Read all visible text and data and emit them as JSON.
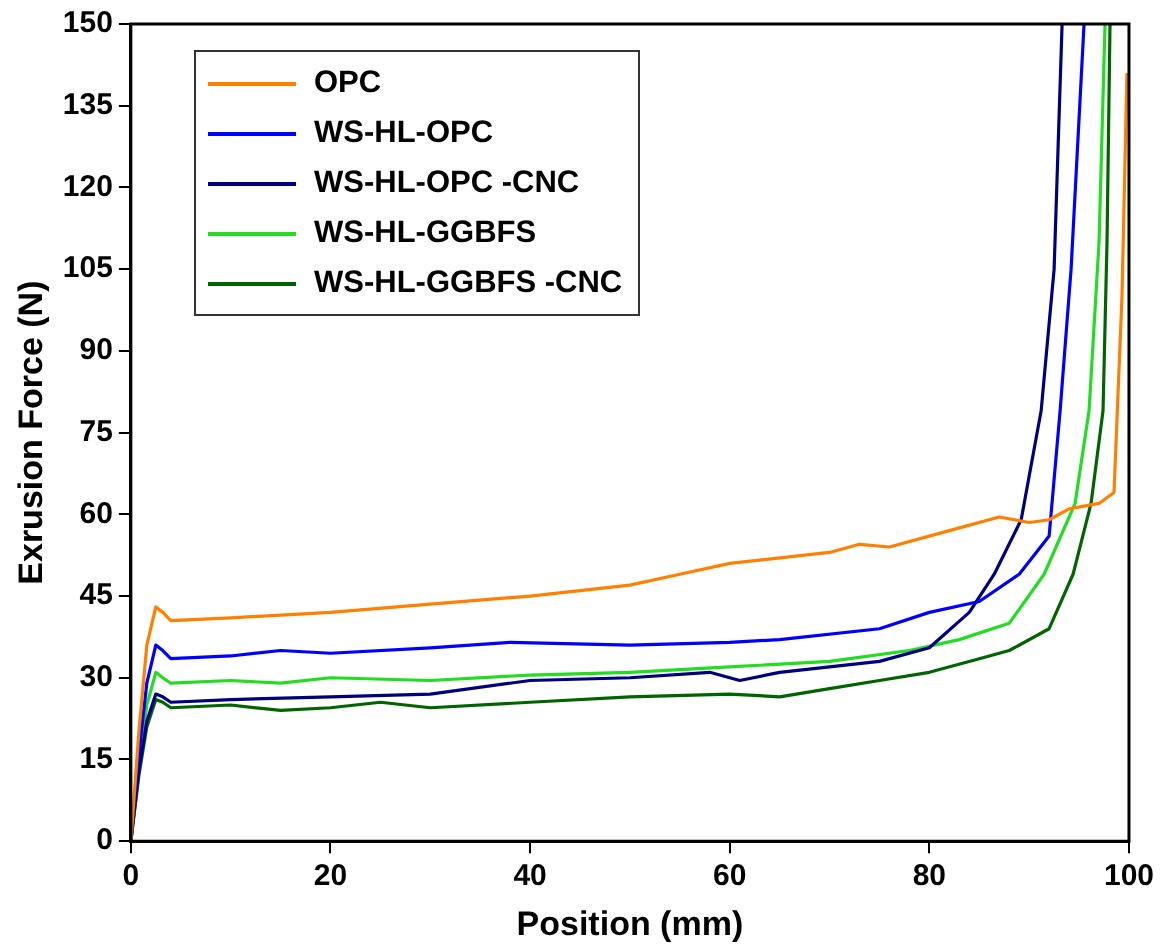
{
  "chart_data": {
    "type": "line",
    "xlabel": "Position (mm)",
    "ylabel": "Exrusion Force (N)",
    "xlim": [
      0,
      100
    ],
    "xticks": [
      0,
      20,
      40,
      60,
      80,
      100
    ],
    "ylim": [
      0,
      150
    ],
    "yticks": [
      0,
      15,
      30,
      45,
      60,
      75,
      90,
      105,
      120,
      135,
      150
    ],
    "grid": false,
    "legend": "top left",
    "marker": "none",
    "line_style": "solid",
    "series": [
      {
        "name": "OPC",
        "color": "#ff8000",
        "x": [
          0,
          0.8,
          1.6,
          2.5,
          3.2,
          4,
          10,
          20,
          30,
          40,
          50,
          55,
          60,
          70,
          73,
          76,
          82,
          87,
          90,
          92,
          94,
          97,
          98.5,
          99.3,
          99.8
        ],
        "values": [
          0,
          20,
          36,
          43,
          42,
          40.5,
          41,
          42,
          43.5,
          45,
          47,
          49,
          51,
          53,
          54.5,
          54,
          57,
          59.5,
          58.5,
          59,
          61,
          62,
          64,
          100,
          141
        ]
      },
      {
        "name": "WS-HL-OPC",
        "color": "#0000ff",
        "x": [
          0,
          0.8,
          1.6,
          2.5,
          3.2,
          4,
          10,
          15,
          20,
          30,
          38,
          50,
          60,
          65,
          75,
          80,
          85,
          89,
          92,
          93.1,
          94.2,
          95.5
        ],
        "values": [
          0,
          16,
          29,
          36,
          35,
          33.5,
          34,
          35,
          34.5,
          35.5,
          36.5,
          36,
          36.5,
          37,
          39,
          42,
          44,
          49,
          56,
          79,
          105,
          150
        ]
      },
      {
        "name": "WS-HL-OPC -CNC",
        "color": "#00007f",
        "x": [
          0,
          0.8,
          1.6,
          2.5,
          3.2,
          4,
          10,
          20,
          30,
          40,
          50,
          58,
          61,
          65,
          70,
          75,
          80,
          84,
          86.5,
          89.2,
          91.2,
          92.5,
          93.3
        ],
        "values": [
          0,
          13,
          22,
          27,
          26.5,
          25.5,
          26,
          26.5,
          27,
          29.5,
          30,
          31,
          29.5,
          31,
          32,
          33,
          35.5,
          42,
          49,
          59,
          79,
          105,
          150
        ]
      },
      {
        "name": "WS-HL-GGBFS",
        "color": "#22dd22",
        "x": [
          0,
          0.8,
          1.6,
          2.5,
          3.2,
          4,
          10,
          15,
          20,
          30,
          40,
          50,
          60,
          70,
          78,
          83,
          88,
          91.5,
          94.6,
          96,
          97,
          97.6
        ],
        "values": [
          0,
          14,
          25,
          31,
          30,
          29,
          29.5,
          29,
          30,
          29.5,
          30.5,
          31,
          32,
          33,
          35,
          37,
          40,
          49,
          62,
          79,
          110,
          150
        ]
      },
      {
        "name": "WS-HL-GGBFS -CNC",
        "color": "#006400",
        "x": [
          0,
          0.8,
          1.6,
          2.5,
          3.2,
          4,
          10,
          15,
          20,
          25,
          30,
          40,
          50,
          60,
          65,
          70,
          75,
          80,
          85,
          88,
          92,
          94.4,
          96.2,
          97.4,
          97.8,
          98.1
        ],
        "values": [
          0,
          12,
          21,
          26,
          25.5,
          24.5,
          25,
          24,
          24.5,
          25.5,
          24.5,
          25.5,
          26.5,
          27,
          26.5,
          28,
          29.5,
          31,
          33.5,
          35,
          39,
          49,
          62,
          79,
          110,
          150
        ]
      }
    ]
  }
}
